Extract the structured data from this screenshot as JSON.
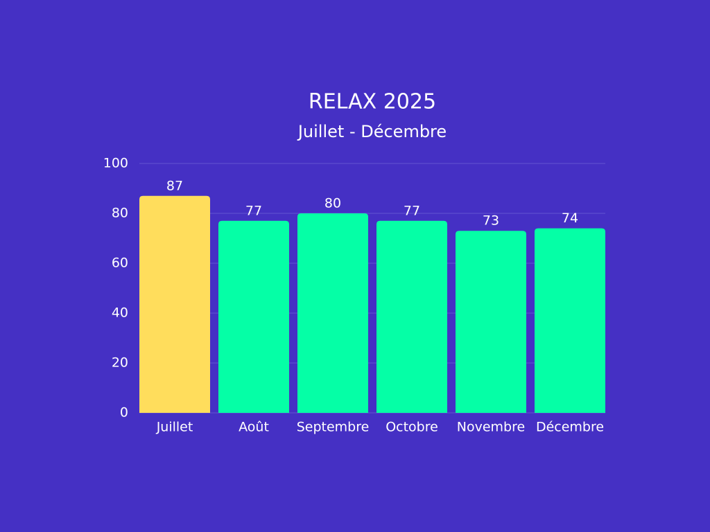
{
  "chart_data": {
    "type": "bar",
    "title": "RELAX 2025",
    "subtitle": "Juillet - Décembre",
    "categories": [
      "Juillet",
      "Août",
      "Septembre",
      "Octobre",
      "Novembre",
      "Décembre"
    ],
    "values": [
      87,
      77,
      80,
      77,
      73,
      74
    ],
    "colors": [
      "#ffdd5c",
      "#05ffa6",
      "#05ffa6",
      "#05ffa6",
      "#05ffa6",
      "#05ffa6"
    ],
    "ylim": [
      0,
      100
    ],
    "yticks": [
      0,
      20,
      40,
      60,
      80,
      100
    ],
    "grid": true
  }
}
